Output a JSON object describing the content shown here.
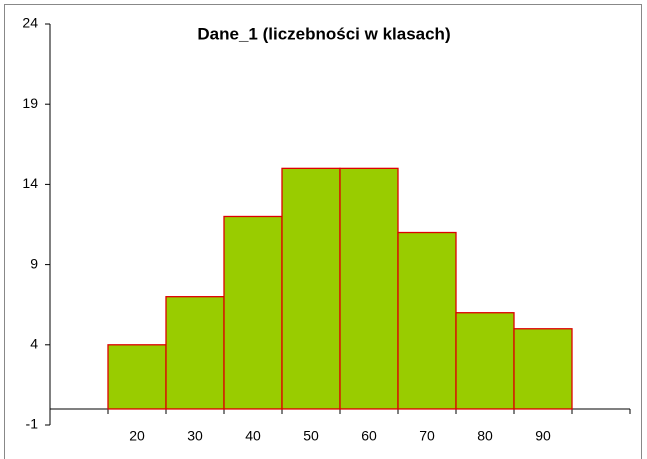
{
  "chart_data": {
    "type": "bar",
    "title": "Dane_1 (liczebności w klasach)",
    "categories": [
      "20",
      "30",
      "40",
      "50",
      "60",
      "70",
      "80",
      "90"
    ],
    "values": [
      4,
      7,
      12,
      15,
      15,
      11,
      6,
      5
    ],
    "color": "#99cc00",
    "edge_color": "#dd0000",
    "ylim": [
      -1,
      24
    ],
    "yticks": [
      -1,
      4,
      9,
      14,
      19,
      24
    ]
  }
}
